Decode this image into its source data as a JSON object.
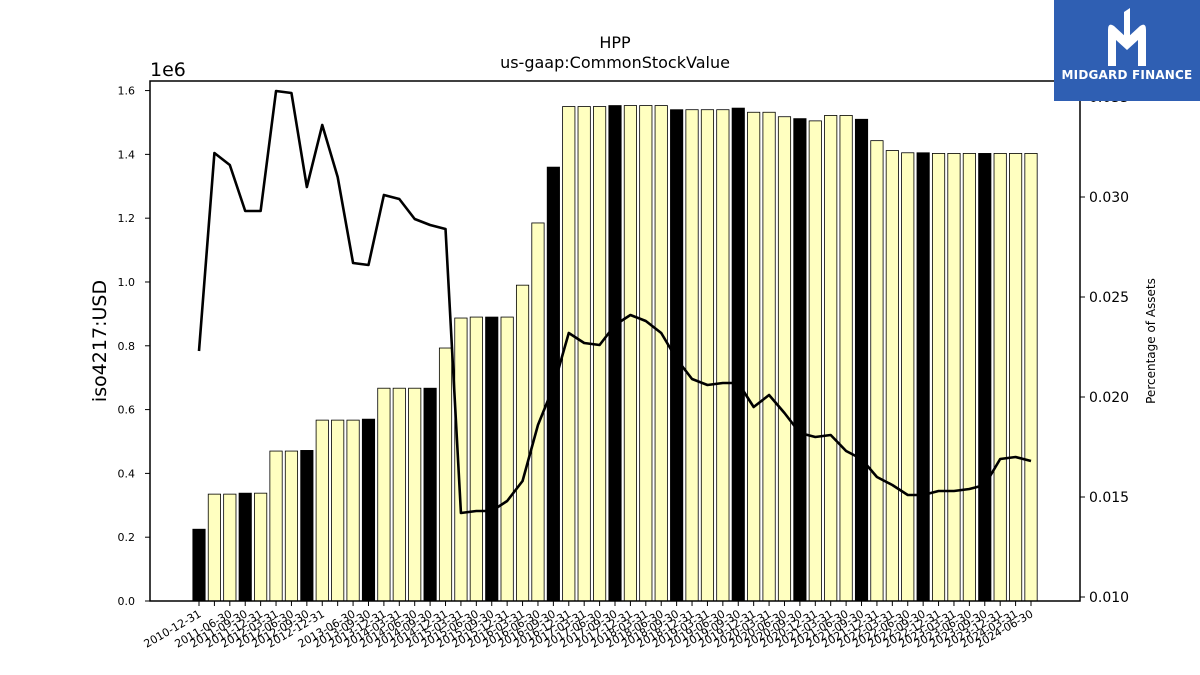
{
  "brand": {
    "name": "MIDGARD FINANCE",
    "icon": "midgard-m-logo-icon",
    "color": "#2f5fb3"
  },
  "chart_data": {
    "type": "bar",
    "title": "HPP",
    "subtitle": "us-gaap:CommonStockValue",
    "ylabel": "iso4217:USD",
    "y_multiplier": "1e6",
    "y2label": "Percentage of Assets",
    "ylim": [
      0,
      1.63
    ],
    "y2lim": [
      0.0098,
      0.0358
    ],
    "yticks": [
      "0.0",
      "0.2",
      "0.4",
      "0.6",
      "0.8",
      "1.0",
      "1.2",
      "1.4",
      "1.6"
    ],
    "y2ticks": [
      "0.010",
      "0.015",
      "0.020",
      "0.025",
      "0.030",
      "0.035"
    ],
    "grid": false,
    "colors": {
      "annual": "#000000",
      "quarterly": "#ffffc0",
      "line": "#000000",
      "edge": "#000000"
    },
    "categories": [
      "2010-12-31",
      "2011-03-31",
      "2011-06-30",
      "2011-09-30",
      "2011-12-31",
      "2012-03-31",
      "2012-06-30",
      "2012-09-30",
      "2012-12-31",
      "2013-03-31",
      "2013-06-30",
      "2013-09-30",
      "2013-12-31",
      "2014-03-31",
      "2014-06-30",
      "2014-09-30",
      "2014-12-31",
      "2015-03-31",
      "2015-06-30",
      "2015-09-30",
      "2015-12-31",
      "2016-03-31",
      "2016-06-30",
      "2016-09-30",
      "2016-12-31",
      "2017-03-31",
      "2017-06-30",
      "2017-09-30",
      "2017-12-31",
      "2018-03-31",
      "2018-06-30",
      "2018-09-30",
      "2018-12-31",
      "2019-03-31",
      "2019-06-30",
      "2019-09-30",
      "2019-12-31",
      "2020-03-31",
      "2020-06-30",
      "2020-09-30",
      "2020-12-31",
      "2021-03-31",
      "2021-06-30",
      "2021-09-30",
      "2021-12-31",
      "2022-03-31",
      "2022-06-30",
      "2022-09-30",
      "2022-12-31",
      "2023-03-31",
      "2023-06-30",
      "2023-09-30",
      "2023-12-31",
      "2024-03-31",
      "2024-06-30"
    ],
    "tick_labels": [
      "2010-12-31",
      "2011-06-30",
      "2011-09-30",
      "2011-12-31",
      "2012-03-31",
      "2012-06-30",
      "2012-09-30",
      "2012-12-31",
      "2013-06-30",
      "2013-09-30",
      "2013-12-31",
      "2014-03-31",
      "2014-06-30",
      "2014-09-30",
      "2014-12-31",
      "2015-03-31",
      "2015-06-30",
      "2015-09-30",
      "2015-12-31",
      "2016-03-31",
      "2016-06-30",
      "2016-09-30",
      "2016-12-31",
      "2017-03-31",
      "2017-06-30",
      "2017-09-30",
      "2017-12-31",
      "2018-03-31",
      "2018-06-30",
      "2018-09-30",
      "2018-12-31",
      "2019-03-31",
      "2019-06-30",
      "2019-09-30",
      "2019-12-31",
      "2020-03-31",
      "2020-06-30",
      "2020-09-30",
      "2020-12-31",
      "2021-03-31",
      "2021-06-30",
      "2021-09-30",
      "2021-12-31",
      "2022-03-31",
      "2022-06-30",
      "2022-09-30",
      "2022-12-31",
      "2023-03-31",
      "2023-06-30",
      "2023-09-30",
      "2023-12-31",
      "2024-03-31",
      "2024-06-30"
    ],
    "annual": [
      1,
      0,
      0,
      1,
      0,
      0,
      0,
      1,
      0,
      0,
      0,
      1,
      0,
      0,
      0,
      1,
      0,
      0,
      0,
      1,
      0,
      0,
      0,
      1,
      0,
      0,
      0,
      1,
      0,
      0,
      0,
      1,
      0,
      0,
      0,
      1,
      0,
      0,
      0,
      1,
      0,
      0,
      0,
      1,
      0,
      0,
      0,
      1,
      0,
      0,
      0,
      1,
      0,
      0,
      0
    ],
    "series": [
      {
        "name": "",
        "axis": "left",
        "type": "bar",
        "values": [
          0.225,
          0.335,
          0.335,
          0.338,
          0.338,
          0.47,
          0.47,
          0.472,
          0.567,
          0.567,
          0.567,
          0.57,
          0.667,
          0.667,
          0.667,
          0.667,
          0.793,
          0.887,
          0.89,
          0.89,
          0.89,
          0.99,
          1.185,
          1.36,
          1.55,
          1.55,
          1.55,
          1.553,
          1.553,
          1.553,
          1.553,
          1.54,
          1.54,
          1.54,
          1.54,
          1.545,
          1.532,
          1.532,
          1.518,
          1.512,
          1.505,
          1.522,
          1.522,
          1.51,
          1.443,
          1.412,
          1.405,
          1.405,
          1.403,
          1.403,
          1.403,
          1.403,
          1.403,
          1.403,
          1.403
        ]
      },
      {
        "name": "",
        "axis": "right",
        "type": "line",
        "values": [
          0.0223,
          0.0322,
          0.0316,
          0.0293,
          0.0293,
          0.0353,
          0.0352,
          0.0305,
          0.0336,
          0.031,
          0.0267,
          0.0266,
          0.0301,
          0.0299,
          0.0289,
          0.0286,
          0.0284,
          0.0142,
          0.0143,
          0.0143,
          0.0148,
          0.0158,
          0.0186,
          0.0205,
          0.0232,
          0.0227,
          0.0226,
          0.0236,
          0.0241,
          0.0238,
          0.0232,
          0.0219,
          0.0209,
          0.0206,
          0.0207,
          0.0207,
          0.0195,
          0.0201,
          0.0192,
          0.0182,
          0.018,
          0.0181,
          0.0173,
          0.0169,
          0.016,
          0.0156,
          0.0151,
          0.0151,
          0.0153,
          0.0153,
          0.0154,
          0.0156,
          0.0169,
          0.017,
          0.0168
        ]
      }
    ]
  }
}
